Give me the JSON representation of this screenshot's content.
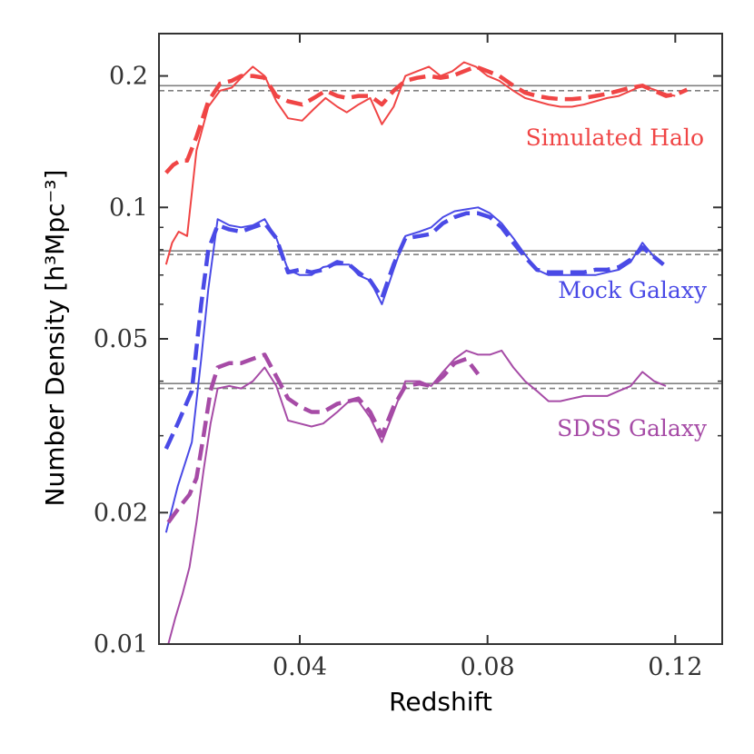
{
  "chart_data": {
    "type": "line",
    "xlabel": "Redshift",
    "ylabel": "Number Density [h³Mpc⁻³]",
    "xlim": [
      0.01,
      0.13
    ],
    "ylim": [
      0.01,
      0.25
    ],
    "yscale": "log",
    "x_ticks": [
      0.04,
      0.08,
      0.12
    ],
    "x_tick_labels": [
      "0.04",
      "0.08",
      "0.12"
    ],
    "y_ticks": [
      0.01,
      0.02,
      0.05,
      0.1,
      0.2
    ],
    "y_tick_labels": [
      "0.01",
      "0.02",
      "0.05",
      "0.1",
      "0.2"
    ],
    "groups": [
      {
        "name": "Simulated Halo",
        "color": "#f04545",
        "reference_solid": 0.19,
        "reference_dashed": 0.185,
        "solid": {
          "x": [
            0.0115,
            0.0128,
            0.0142,
            0.016,
            0.018,
            0.0205,
            0.023,
            0.0255,
            0.0275,
            0.03,
            0.0325,
            0.035,
            0.0375,
            0.0405,
            0.043,
            0.0455,
            0.048,
            0.05,
            0.0525,
            0.055,
            0.0575,
            0.06,
            0.0625,
            0.065,
            0.0675,
            0.07,
            0.0725,
            0.075,
            0.0775,
            0.08,
            0.0825,
            0.0855,
            0.088,
            0.0905,
            0.093,
            0.0955,
            0.098,
            0.1005,
            0.103,
            0.1055,
            0.108,
            0.1105,
            0.113,
            0.1155,
            0.118,
            0.12
          ],
          "y": [
            0.074,
            0.083,
            0.088,
            0.086,
            0.135,
            0.17,
            0.185,
            0.188,
            0.198,
            0.21,
            0.2,
            0.175,
            0.16,
            0.158,
            0.168,
            0.178,
            0.17,
            0.165,
            0.172,
            0.178,
            0.155,
            0.17,
            0.2,
            0.205,
            0.21,
            0.2,
            0.205,
            0.215,
            0.21,
            0.2,
            0.195,
            0.185,
            0.178,
            0.175,
            0.172,
            0.17,
            0.17,
            0.172,
            0.175,
            0.178,
            0.18,
            0.185,
            0.19,
            0.186,
            0.182,
            0.18
          ]
        },
        "dashed": {
          "x": [
            0.0115,
            0.013,
            0.0145,
            0.016,
            0.018,
            0.0205,
            0.023,
            0.0255,
            0.0275,
            0.03,
            0.0325,
            0.035,
            0.0375,
            0.0405,
            0.043,
            0.0455,
            0.048,
            0.05,
            0.0525,
            0.055,
            0.0575,
            0.06,
            0.0625,
            0.065,
            0.0675,
            0.07,
            0.0725,
            0.075,
            0.0775,
            0.08,
            0.0825,
            0.0855,
            0.088,
            0.0905,
            0.093,
            0.0955,
            0.098,
            0.1005,
            0.103,
            0.1055,
            0.108,
            0.1105,
            0.113,
            0.1155,
            0.118,
            0.1205,
            0.1225
          ],
          "y": [
            0.12,
            0.125,
            0.128,
            0.128,
            0.145,
            0.175,
            0.192,
            0.195,
            0.2,
            0.2,
            0.198,
            0.18,
            0.175,
            0.172,
            0.178,
            0.185,
            0.18,
            0.178,
            0.18,
            0.18,
            0.172,
            0.185,
            0.195,
            0.198,
            0.2,
            0.198,
            0.2,
            0.205,
            0.21,
            0.205,
            0.2,
            0.19,
            0.183,
            0.18,
            0.178,
            0.177,
            0.177,
            0.178,
            0.18,
            0.182,
            0.185,
            0.188,
            0.19,
            0.185,
            0.18,
            0.182,
            0.186
          ]
        }
      },
      {
        "name": "Mock Galaxy",
        "color": "#4a4ae6",
        "reference_solid": 0.0795,
        "reference_dashed": 0.078,
        "solid": {
          "x": [
            0.0115,
            0.014,
            0.017,
            0.019,
            0.0205,
            0.0225,
            0.025,
            0.0275,
            0.03,
            0.0325,
            0.035,
            0.0375,
            0.04,
            0.0425,
            0.045,
            0.048,
            0.0505,
            0.0525,
            0.055,
            0.0575,
            0.06,
            0.0625,
            0.0655,
            0.068,
            0.0705,
            0.073,
            0.0755,
            0.078,
            0.0805,
            0.083,
            0.0855,
            0.088,
            0.0905,
            0.093,
            0.0955,
            0.098,
            0.1005,
            0.103,
            0.1055,
            0.108,
            0.1105,
            0.113,
            0.1155,
            0.1175
          ],
          "y": [
            0.018,
            0.023,
            0.029,
            0.045,
            0.065,
            0.094,
            0.091,
            0.09,
            0.091,
            0.094,
            0.085,
            0.072,
            0.07,
            0.07,
            0.073,
            0.074,
            0.074,
            0.07,
            0.068,
            0.06,
            0.072,
            0.086,
            0.088,
            0.09,
            0.095,
            0.098,
            0.099,
            0.1,
            0.097,
            0.092,
            0.085,
            0.078,
            0.072,
            0.07,
            0.07,
            0.07,
            0.07,
            0.07,
            0.071,
            0.072,
            0.075,
            0.083,
            0.077,
            0.074
          ]
        },
        "dashed": {
          "x": [
            0.0115,
            0.014,
            0.017,
            0.019,
            0.0205,
            0.0225,
            0.025,
            0.0275,
            0.03,
            0.0325,
            0.035,
            0.0375,
            0.04,
            0.0425,
            0.045,
            0.048,
            0.0505,
            0.0525,
            0.055,
            0.0575,
            0.06,
            0.0625,
            0.0655,
            0.068,
            0.0705,
            0.073,
            0.0755,
            0.078,
            0.0805,
            0.083,
            0.0855,
            0.088,
            0.0905,
            0.093,
            0.0955,
            0.098,
            0.1005,
            0.103,
            0.1055,
            0.108,
            0.1105,
            0.113,
            0.1155,
            0.1175
          ],
          "y": [
            0.028,
            0.032,
            0.038,
            0.06,
            0.08,
            0.091,
            0.089,
            0.088,
            0.09,
            0.092,
            0.085,
            0.071,
            0.072,
            0.071,
            0.072,
            0.075,
            0.074,
            0.071,
            0.068,
            0.062,
            0.074,
            0.085,
            0.086,
            0.087,
            0.092,
            0.095,
            0.097,
            0.097,
            0.095,
            0.09,
            0.083,
            0.077,
            0.072,
            0.071,
            0.071,
            0.071,
            0.071,
            0.072,
            0.072,
            0.073,
            0.076,
            0.081,
            0.077,
            0.074
          ]
        }
      },
      {
        "name": "SDSS Galaxy",
        "color": "#a64ba6",
        "reference_solid": 0.0395,
        "reference_dashed": 0.0385,
        "solid": {
          "x": [
            0.012,
            0.0135,
            0.015,
            0.0165,
            0.018,
            0.0195,
            0.021,
            0.0225,
            0.025,
            0.0275,
            0.03,
            0.0325,
            0.035,
            0.0375,
            0.04,
            0.0425,
            0.045,
            0.048,
            0.0505,
            0.0525,
            0.055,
            0.0575,
            0.06,
            0.0625,
            0.0655,
            0.068,
            0.0705,
            0.073,
            0.0755,
            0.078,
            0.0805,
            0.083,
            0.0855,
            0.088,
            0.0905,
            0.093,
            0.0955,
            0.098,
            0.1005,
            0.103,
            0.1055,
            0.108,
            0.1105,
            0.113,
            0.1155,
            0.118
          ],
          "y": [
            0.01,
            0.0115,
            0.013,
            0.015,
            0.019,
            0.025,
            0.032,
            0.0385,
            0.039,
            0.0385,
            0.04,
            0.043,
            0.039,
            0.0325,
            0.032,
            0.0315,
            0.032,
            0.034,
            0.036,
            0.036,
            0.033,
            0.029,
            0.034,
            0.04,
            0.04,
            0.039,
            0.042,
            0.045,
            0.047,
            0.046,
            0.046,
            0.047,
            0.043,
            0.04,
            0.038,
            0.036,
            0.036,
            0.0365,
            0.037,
            0.037,
            0.037,
            0.038,
            0.039,
            0.042,
            0.04,
            0.039
          ]
        },
        "dashed": {
          "x": [
            0.012,
            0.0135,
            0.015,
            0.0165,
            0.018,
            0.0195,
            0.021,
            0.0225,
            0.025,
            0.0275,
            0.03,
            0.0325,
            0.035,
            0.0375,
            0.04,
            0.0425,
            0.045,
            0.048,
            0.0505,
            0.0525,
            0.055,
            0.0575,
            0.06,
            0.0625,
            0.0655,
            0.068,
            0.0705,
            0.073,
            0.0755,
            0.078
          ],
          "y": [
            0.019,
            0.02,
            0.021,
            0.022,
            0.024,
            0.03,
            0.038,
            0.043,
            0.044,
            0.044,
            0.045,
            0.046,
            0.041,
            0.0365,
            0.035,
            0.034,
            0.034,
            0.0355,
            0.036,
            0.0365,
            0.034,
            0.03,
            0.035,
            0.039,
            0.0395,
            0.039,
            0.041,
            0.044,
            0.045,
            0.0415
          ]
        }
      }
    ]
  }
}
